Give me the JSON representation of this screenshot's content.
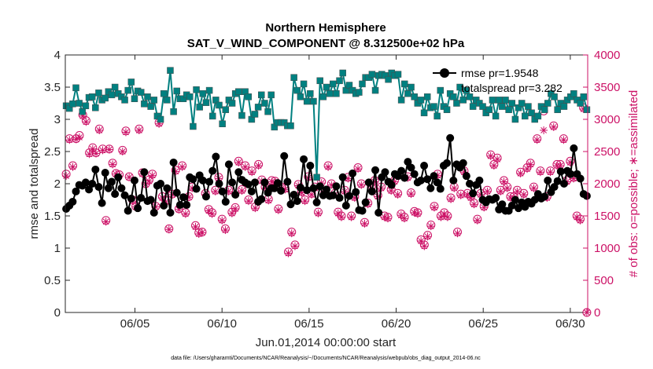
{
  "chart_data": {
    "type": "line",
    "title": "Northern Hemisphere",
    "subtitle": "SAT_V_WIND_COMPONENT @ 8.312500e+02 hPa",
    "xlabel": "Jun.01,2014 00:00:00 start",
    "ylabel_left": "rmse and totalspread",
    "ylabel_right": "# of obs: o=possible; ∗=assimilated",
    "footnote": "data file: /Users/gharamti/Documents/NCAR/Reanalysis/~/Documents/NCAR/Reanalysis/webpub/obs_diag_output_2014-06.nc",
    "xlim": [
      1,
      31
    ],
    "xticks": [
      5,
      10,
      15,
      20,
      25,
      30
    ],
    "xtick_labels": [
      "06/05",
      "06/10",
      "06/15",
      "06/20",
      "06/25",
      "06/30"
    ],
    "ylim_left": [
      0,
      4
    ],
    "yticks_left": [
      "0",
      "0.5",
      "1",
      "1.5",
      "2",
      "2.5",
      "3",
      "3.5",
      "4"
    ],
    "ylim_right": [
      0,
      4000
    ],
    "yticks_right": [
      "0",
      "500",
      "1000",
      "1500",
      "2000",
      "2500",
      "3000",
      "3500",
      "4000"
    ],
    "legend": [
      "rmse pr=1.9548",
      "totalspread pr=3.282"
    ],
    "series": [
      {
        "name": "rmse pr=1.9548",
        "axis": "left",
        "color": "#000000",
        "marker": "filled-circle",
        "values": [
          1.61,
          1.66,
          1.72,
          1.88,
          1.98,
          1.97,
          2.02,
          1.91,
          2.0,
          2.22,
          1.95,
          1.7,
          2.17,
          1.93,
          2.03,
          1.84,
          2.1,
          1.93,
          1.82,
          1.58,
          1.77,
          2.05,
          1.62,
          1.78,
          2.18,
          1.73,
          1.75,
          1.55,
          1.97,
          2.0,
          1.66,
          1.93,
          1.55,
          2.33,
          1.86,
          1.67,
          1.79,
          1.67,
          2.1,
          2.07,
          1.92,
          2.13,
          2.05,
          1.8,
          2.03,
          2.2,
          2.42,
          2.0,
          1.88,
          1.72,
          2.3,
          2.02,
          1.83,
          2.18,
          2.06,
          2.02,
          1.99,
          1.88,
          2.02,
          1.72,
          1.76,
          2.02,
          1.86,
          1.93,
          1.93,
          2.01,
          1.89,
          2.43,
          2.03,
          1.68,
          1.83,
          1.73,
          1.94,
          2.38,
          1.9,
          2.28,
          1.93,
          1.71,
          1.96,
          1.82,
          1.91,
          1.81,
          1.82,
          1.96,
          1.78,
          2.1,
          1.66,
          1.81,
          2.16,
          1.87,
          1.59,
          1.58,
          1.71,
          2.02,
          1.88,
          2.21,
          1.55,
          2.1,
          2.18,
          2.03,
          1.98,
          2.15,
          2.12,
          2.2,
          2.09,
          2.34,
          2.25,
          2.15,
          2.02,
          2.05,
          2.28,
          2.07,
          1.93,
          2.12,
          2.02,
          1.92,
          2.28,
          2.32,
          2.71,
          2.05,
          2.3,
          2.25,
          2.32,
          2.12,
          2.0,
          1.85,
          1.98,
          2.05,
          1.75,
          1.71,
          1.76,
          1.75,
          1.78,
          1.6,
          1.68,
          1.58,
          1.58,
          1.66,
          1.75,
          1.62,
          1.71,
          1.64,
          1.72,
          1.69,
          1.75,
          1.84,
          1.77,
          1.8,
          2.05,
          1.87,
          1.95,
          2.04,
          2.19,
          2.0,
          2.2,
          2.15,
          2.55,
          2.15,
          2.08,
          1.84,
          1.81
        ]
      },
      {
        "name": "totalspread pr=3.282",
        "axis": "left",
        "color": "#008080",
        "marker": "filled-square",
        "values": [
          3.21,
          3.17,
          3.24,
          3.49,
          3.25,
          3.12,
          3.21,
          3.34,
          3.35,
          3.18,
          3.41,
          3.3,
          3.33,
          3.43,
          3.38,
          3.5,
          3.4,
          3.35,
          3.3,
          3.45,
          3.58,
          3.32,
          3.44,
          3.42,
          3.24,
          3.35,
          3.2,
          3.3,
          3.05,
          3.0,
          3.4,
          3.3,
          3.76,
          3.12,
          3.44,
          3.32,
          3.32,
          3.38,
          3.35,
          2.89,
          3.46,
          3.19,
          3.4,
          3.26,
          3.45,
          3.05,
          3.3,
          3.22,
          2.93,
          3.15,
          3.3,
          3.25,
          3.4,
          3.43,
          3.06,
          3.43,
          3.35,
          3.0,
          3.08,
          3.19,
          3.38,
          3.25,
          3.12,
          3.38,
          2.88,
          2.95,
          2.95,
          2.95,
          2.9,
          2.9,
          3.65,
          3.45,
          3.35,
          3.55,
          3.28,
          3.4,
          3.28,
          2.1,
          3.6,
          3.35,
          3.5,
          3.4,
          3.55,
          3.4,
          3.6,
          3.72,
          3.45,
          3.53,
          3.45,
          3.4,
          3.42,
          3.55,
          3.65,
          3.65,
          3.7,
          3.45,
          3.68,
          3.7,
          3.68,
          3.62,
          3.72,
          3.68,
          3.7,
          3.3,
          3.55,
          3.4,
          3.5,
          3.35,
          3.25,
          3.3,
          3.1,
          3.35,
          3.18,
          3.2,
          3.05,
          3.45,
          3.2,
          3.15,
          3.4,
          3.35,
          3.25,
          3.5,
          3.3,
          3.45,
          3.35,
          3.2,
          3.3,
          3.25,
          3.2,
          3.1,
          3.15,
          3.3,
          3.05,
          3.3,
          3.2,
          3.3,
          3.15,
          3.25,
          3.0,
          3.18,
          3.25,
          3.05,
          3.2,
          3.1,
          3.0,
          3.05,
          3.2,
          3.15,
          3.25,
          3.4,
          3.35,
          3.15,
          3.25,
          3.2,
          3.3,
          3.35,
          3.4,
          3.3,
          3.25,
          3.35,
          3.15
        ]
      },
      {
        "name": "# of obs possible",
        "axis": "right",
        "color": "#cc1166",
        "marker": "open-circle",
        "values": [
          2150,
          2700,
          2280,
          2700,
          2750,
          3070,
          2980,
          2480,
          2560,
          2480,
          2850,
          2540,
          1430,
          2540,
          2320,
          2160,
          2140,
          2520,
          2820,
          2110,
          1750,
          1650,
          2850,
          2170,
          2000,
          2060,
          2150,
          1650,
          2950,
          1800,
          1740,
          1300,
          1840,
          2210,
          1610,
          2280,
          1550,
          1800,
          1950,
          1350,
          1240,
          1250,
          1850,
          1600,
          1550,
          1900,
          2100,
          1450,
          1300,
          1900,
          1560,
          1630,
          2350,
          1910,
          2280,
          1750,
          2200,
          1640,
          2300,
          2060,
          1950,
          1760,
          2050,
          2040,
          1610,
          1950,
          1930,
          940,
          1250,
          1050,
          1990,
          1880,
          1750,
          2110,
          1850,
          1950,
          1560,
          2030,
          1870,
          2280,
          2000,
          1850,
          1560,
          1500,
          1900,
          2100,
          1500,
          1800,
          2250,
          2000,
          1400,
          1700,
          1950,
          2050,
          1820,
          1950,
          1500,
          1480,
          1910,
          2050,
          1850,
          1530,
          1480,
          2110,
          1860,
          1570,
          1550,
          1130,
          1050,
          1200,
          1360,
          1650,
          2150,
          1500,
          1550,
          1500,
          1780,
          1950,
          1250,
          1840,
          2200,
          1850,
          1800,
          1700,
          1450,
          1850,
          1650,
          1900,
          2450,
          2300,
          2400,
          1900,
          2050,
          1950,
          1800,
          1800,
          1900,
          2180,
          1850,
          2250,
          2320,
          1950,
          2700,
          2200,
          3130,
          1800,
          2200,
          2900,
          2300,
          2300,
          2700,
          2050,
          2350,
          2100,
          1500,
          1450,
          3180,
          0
        ]
      },
      {
        "name": "# of obs assimilated",
        "axis": "right",
        "color": "#cc1166",
        "marker": "asterisk",
        "values": [
          2120,
          2680,
          2260,
          2690,
          2720,
          3050,
          2960,
          2460,
          2540,
          2470,
          2830,
          2520,
          1410,
          2530,
          2300,
          2150,
          2120,
          2500,
          2800,
          2100,
          1730,
          1640,
          2830,
          2150,
          1990,
          2040,
          2130,
          1640,
          2930,
          1780,
          1720,
          1290,
          1830,
          2190,
          1600,
          2260,
          1530,
          1790,
          1930,
          1330,
          1220,
          1240,
          1830,
          1580,
          1530,
          1880,
          2080,
          1430,
          1280,
          1880,
          1540,
          1610,
          2330,
          1890,
          2260,
          1730,
          2180,
          1620,
          2280,
          2040,
          1930,
          1740,
          2030,
          2020,
          1590,
          1930,
          1910,
          920,
          1230,
          1030,
          1970,
          1860,
          1730,
          2090,
          1830,
          1930,
          1540,
          2010,
          1850,
          2260,
          1980,
          1830,
          1540,
          1480,
          1880,
          2080,
          1480,
          1780,
          2230,
          1980,
          1380,
          1680,
          1930,
          2030,
          1800,
          1930,
          1480,
          1460,
          1890,
          2030,
          1830,
          1510,
          1460,
          2090,
          1840,
          1550,
          1530,
          1110,
          1030,
          1180,
          1340,
          1630,
          2130,
          1480,
          1530,
          1480,
          1760,
          1930,
          1230,
          1820,
          2180,
          1830,
          1780,
          1680,
          1430,
          1830,
          1630,
          1880,
          2430,
          2280,
          2380,
          1880,
          2030,
          1930,
          1780,
          1780,
          1880,
          2160,
          1830,
          2230,
          2300,
          1930,
          2680,
          2180,
          2830,
          1780,
          2180,
          2880,
          2280,
          2280,
          2680,
          2030,
          2330,
          2080,
          1480,
          1430,
          3160,
          0
        ]
      }
    ]
  }
}
